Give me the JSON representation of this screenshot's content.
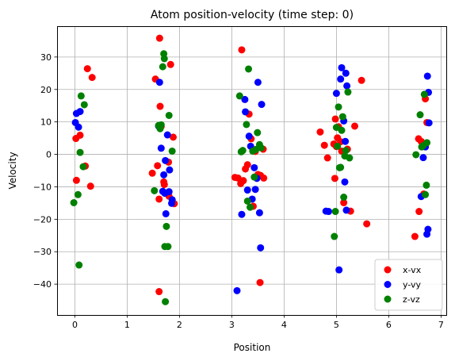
{
  "chart_data": {
    "type": "scatter",
    "title": "Atom position-velocity (time step: 0)",
    "xlabel": "Position",
    "ylabel": "Velocity",
    "xlim": [
      -0.34,
      7.1
    ],
    "ylim": [
      -49.5,
      39.5
    ],
    "xticks": [
      "0",
      "1",
      "2",
      "3",
      "4",
      "5",
      "6",
      "7"
    ],
    "yticks": [
      "−40",
      "−30",
      "−20",
      "−10",
      "0",
      "10",
      "20",
      "30"
    ],
    "grid": true,
    "legend_position": "lower right",
    "series": [
      {
        "name": "x-vx",
        "color": "#ff0000",
        "points": [
          [
            0.02,
            4.9
          ],
          [
            0.03,
            -8.0
          ],
          [
            0.1,
            5.9
          ],
          [
            0.2,
            -3.6
          ],
          [
            0.24,
            26.4
          ],
          [
            0.3,
            -9.8
          ],
          [
            0.33,
            23.7
          ],
          [
            1.48,
            -5.8
          ],
          [
            1.54,
            23.2
          ],
          [
            1.58,
            -3.5
          ],
          [
            1.61,
            -42.3
          ],
          [
            1.61,
            -13.8
          ],
          [
            1.62,
            35.8
          ],
          [
            1.63,
            14.8
          ],
          [
            1.65,
            8.6
          ],
          [
            1.7,
            -8.5
          ],
          [
            1.71,
            -9.3
          ],
          [
            1.79,
            -2.4
          ],
          [
            1.8,
            -12.9
          ],
          [
            1.83,
            27.7
          ],
          [
            1.88,
            5.3
          ],
          [
            1.9,
            -15.2
          ],
          [
            3.06,
            -7.1
          ],
          [
            3.12,
            -7.3
          ],
          [
            3.17,
            -9.0
          ],
          [
            3.19,
            32.2
          ],
          [
            3.22,
            -8.1
          ],
          [
            3.26,
            -4.5
          ],
          [
            3.3,
            -3.2
          ],
          [
            3.33,
            12.4
          ],
          [
            3.37,
            4.8
          ],
          [
            3.41,
            -16.0
          ],
          [
            3.45,
            0.9
          ],
          [
            3.5,
            -6.2
          ],
          [
            3.54,
            -39.5
          ],
          [
            3.55,
            -6.5
          ],
          [
            3.6,
            1.6
          ],
          [
            3.61,
            -7.3
          ],
          [
            4.69,
            6.9
          ],
          [
            4.77,
            2.8
          ],
          [
            4.83,
            -1.1
          ],
          [
            4.95,
            3.2
          ],
          [
            4.97,
            -7.4
          ],
          [
            4.98,
            10.9
          ],
          [
            5.0,
            2.4
          ],
          [
            5.02,
            5.1
          ],
          [
            5.04,
            8.5
          ],
          [
            5.08,
            3.9
          ],
          [
            5.1,
            1.0
          ],
          [
            5.14,
            -14.9
          ],
          [
            5.21,
            1.6
          ],
          [
            5.27,
            -17.5
          ],
          [
            5.35,
            8.7
          ],
          [
            5.48,
            22.8
          ],
          [
            5.58,
            -21.4
          ],
          [
            6.5,
            -25.3
          ],
          [
            6.57,
            4.8
          ],
          [
            6.58,
            -17.6
          ],
          [
            6.62,
            4.0
          ],
          [
            6.67,
            -12.2
          ],
          [
            6.7,
            17.1
          ],
          [
            6.73,
            9.8
          ]
        ]
      },
      {
        "name": "y-vy",
        "color": "#0000ff",
        "points": [
          [
            0.01,
            9.8
          ],
          [
            0.03,
            12.6
          ],
          [
            0.07,
            8.4
          ],
          [
            0.1,
            13.2
          ],
          [
            1.6,
            8.7
          ],
          [
            1.62,
            22.2
          ],
          [
            1.65,
            1.9
          ],
          [
            1.68,
            -11.4
          ],
          [
            1.7,
            -6.3
          ],
          [
            1.72,
            -12.0
          ],
          [
            1.73,
            -1.9
          ],
          [
            1.74,
            -18.3
          ],
          [
            1.77,
            6.0
          ],
          [
            1.8,
            -11.5
          ],
          [
            1.81,
            -4.8
          ],
          [
            1.85,
            -15.1
          ],
          [
            1.86,
            -14.0
          ],
          [
            3.1,
            -42.0
          ],
          [
            3.19,
            -18.5
          ],
          [
            3.25,
            16.9
          ],
          [
            3.26,
            13.1
          ],
          [
            3.3,
            -11.0
          ],
          [
            3.33,
            5.6
          ],
          [
            3.36,
            2.5
          ],
          [
            3.39,
            -13.8
          ],
          [
            3.43,
            -4.1
          ],
          [
            3.45,
            -10.8
          ],
          [
            3.48,
            -7.4
          ],
          [
            3.5,
            22.2
          ],
          [
            3.53,
            -18.0
          ],
          [
            3.55,
            -28.8
          ],
          [
            3.57,
            15.4
          ],
          [
            4.8,
            -17.5
          ],
          [
            4.85,
            -17.6
          ],
          [
            5.0,
            18.8
          ],
          [
            5.05,
            -35.6
          ],
          [
            5.08,
            23.2
          ],
          [
            5.1,
            26.7
          ],
          [
            5.14,
            10.3
          ],
          [
            5.16,
            -8.5
          ],
          [
            5.17,
            4.0
          ],
          [
            5.18,
            25.0
          ],
          [
            5.19,
            -17.2
          ],
          [
            5.2,
            21.1
          ],
          [
            6.62,
            -13.0
          ],
          [
            6.66,
            -1.0
          ],
          [
            6.7,
            2.3
          ],
          [
            6.73,
            -24.6
          ],
          [
            6.74,
            24.1
          ],
          [
            6.75,
            -23.1
          ],
          [
            6.76,
            19.1
          ],
          [
            6.77,
            9.7
          ]
        ]
      },
      {
        "name": "z-vz",
        "color": "#008000",
        "points": [
          [
            -0.02,
            -14.9
          ],
          [
            0.06,
            -12.4
          ],
          [
            0.08,
            -34.1
          ],
          [
            0.1,
            0.6
          ],
          [
            0.12,
            18.0
          ],
          [
            0.16,
            -3.8
          ],
          [
            0.18,
            15.3
          ],
          [
            1.52,
            -11.2
          ],
          [
            1.6,
            8.9
          ],
          [
            1.63,
            7.9
          ],
          [
            1.65,
            9.1
          ],
          [
            1.68,
            27.0
          ],
          [
            1.7,
            31.0
          ],
          [
            1.71,
            29.5
          ],
          [
            1.72,
            -28.4
          ],
          [
            1.73,
            -45.4
          ],
          [
            1.75,
            -22.2
          ],
          [
            1.78,
            -28.4
          ],
          [
            1.8,
            12.0
          ],
          [
            1.86,
            1.0
          ],
          [
            3.15,
            18.0
          ],
          [
            3.18,
            0.8
          ],
          [
            3.21,
            1.2
          ],
          [
            3.28,
            9.2
          ],
          [
            3.3,
            -14.4
          ],
          [
            3.32,
            26.3
          ],
          [
            3.35,
            -16.3
          ],
          [
            3.4,
            1.0
          ],
          [
            3.43,
            -7.0
          ],
          [
            3.46,
            1.5
          ],
          [
            3.49,
            6.7
          ],
          [
            3.53,
            3.0
          ],
          [
            3.56,
            2.0
          ],
          [
            4.96,
            -25.3
          ],
          [
            4.98,
            -17.6
          ],
          [
            5.0,
            8.3
          ],
          [
            5.02,
            2.5
          ],
          [
            5.04,
            14.6
          ],
          [
            5.06,
            -4.1
          ],
          [
            5.08,
            -4.0
          ],
          [
            5.1,
            7.4
          ],
          [
            5.12,
            11.6
          ],
          [
            5.14,
            -13.2
          ],
          [
            5.16,
            -0.5
          ],
          [
            5.18,
            1.2
          ],
          [
            5.22,
            19.2
          ],
          [
            5.25,
            -1.1
          ],
          [
            6.52,
            -0.1
          ],
          [
            6.6,
            12.2
          ],
          [
            6.63,
            2.3
          ],
          [
            6.66,
            2.7
          ],
          [
            6.68,
            18.5
          ],
          [
            6.7,
            -12.4
          ],
          [
            6.72,
            -9.5
          ],
          [
            6.73,
            3.6
          ]
        ]
      }
    ]
  }
}
